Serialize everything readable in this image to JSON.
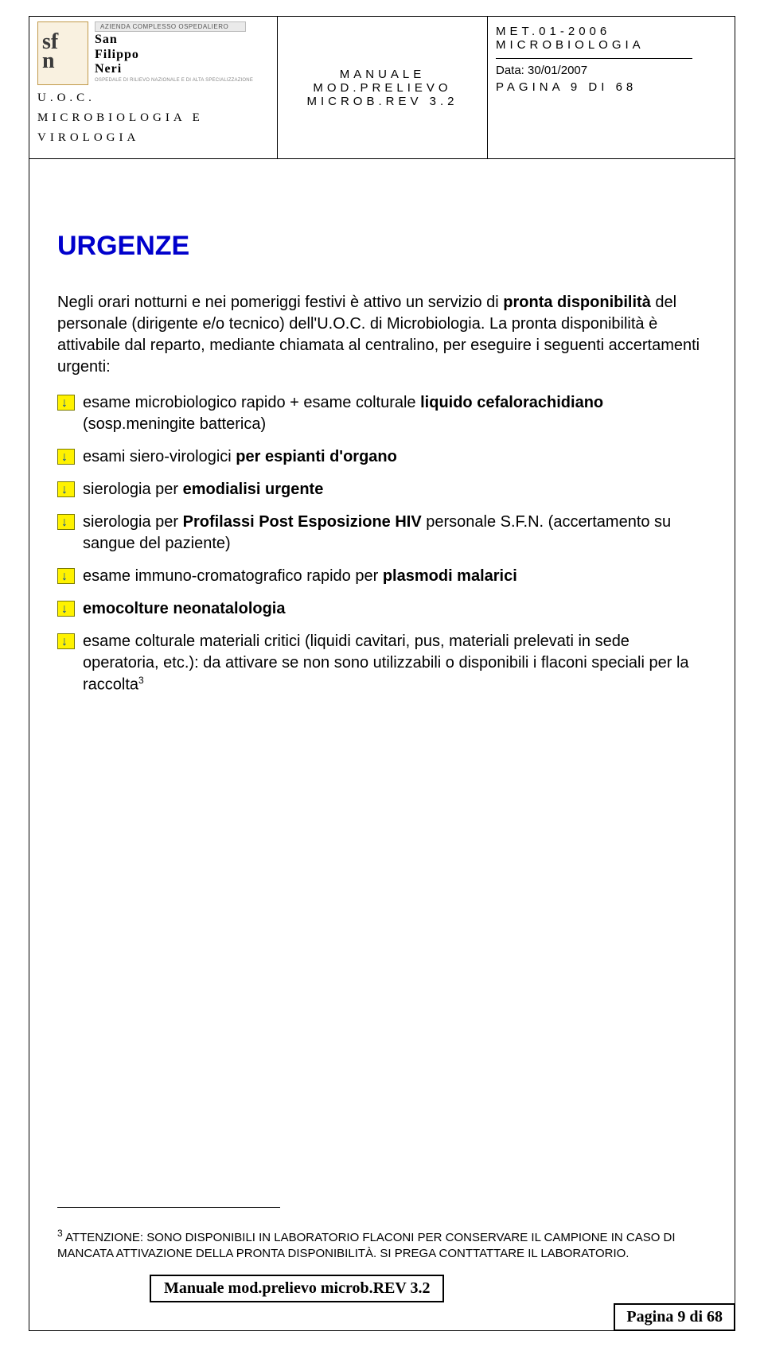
{
  "header": {
    "azienda_bar": "AZIENDA COMPLESSO OSPEDALIERO",
    "brand_line1": "San",
    "brand_line2": "Filippo",
    "brand_line3": "Neri",
    "brand_small": "OSPEDALE DI RILIEVO NAZIONALE E DI ALTA SPECIALIZZAZIONE",
    "uoc_line1": "U.O.C.",
    "uoc_line2": "MICROBIOLOGIA E",
    "uoc_line3": "VIROLOGIA",
    "manual_line1": "MANUALE",
    "manual_line2": "MOD.PRELIEVO",
    "manual_line3": "MICROB.REV 3.2",
    "met_line1": "MET.01-2006",
    "met_line2": "MICROBIOLOGIA",
    "date_line": "Data: 30/01/2007",
    "page_line": "PAGINA 9 DI 68"
  },
  "title": "URGENZE",
  "intro_parts": {
    "p1": "Negli orari notturni e nei pomeriggi festivi è attivo un servizio di ",
    "p1b": "pronta disponibilità",
    "p2": " del personale (dirigente e/o tecnico) dell'U.O.C. di Microbiologia. La pronta disponibilità è attivabile dal reparto, mediante chiamata al centralino, per eseguire i seguenti accertamenti urgenti:"
  },
  "items": [
    {
      "pre": "esame microbiologico rapido + esame colturale ",
      "b": "liquido cefalorachidiano",
      "post": " (sosp.meningite batterica)"
    },
    {
      "pre": "esami siero-virologici ",
      "b": "per espianti d'organo",
      "post": ""
    },
    {
      "pre": "sierologia per ",
      "b": "emodialisi urgente",
      "post": ""
    },
    {
      "pre": "sierologia per ",
      "b": "Profilassi Post Esposizione HIV",
      "post": " personale S.F.N. (accertamento su sangue del paziente)"
    },
    {
      "pre": "esame immuno-cromatografico rapido per ",
      "b": "plasmodi malarici",
      "post": ""
    },
    {
      "pre": "",
      "b": "emocolture neonatalologia",
      "post": ""
    },
    {
      "pre": "esame colturale materiali critici (liquidi cavitari, pus, materiali prelevati in sede operatoria, etc.): da attivare se non sono utilizzabili o disponibili  i flaconi speciali per la raccolta",
      "b": "",
      "post": "",
      "sup": "3"
    }
  ],
  "footnote": {
    "sup": "3",
    "text": " ATTENZIONE: SONO DISPONIBILI IN LABORATORIO FLACONI PER CONSERVARE IL CAMPIONE IN CASO DI MANCATA ATTIVAZIONE DELLA PRONTA DISPONIBILITÀ. SI PREGA CONTTATTARE IL LABORATORIO."
  },
  "footer": {
    "box1": "Manuale mod.prelievo microb.REV 3.2",
    "box2": "Pagina 9 di 68"
  },
  "colors": {
    "title": "#0000cc",
    "bullet_bg": "#fff200",
    "bullet_arrow": "#064aa0"
  }
}
